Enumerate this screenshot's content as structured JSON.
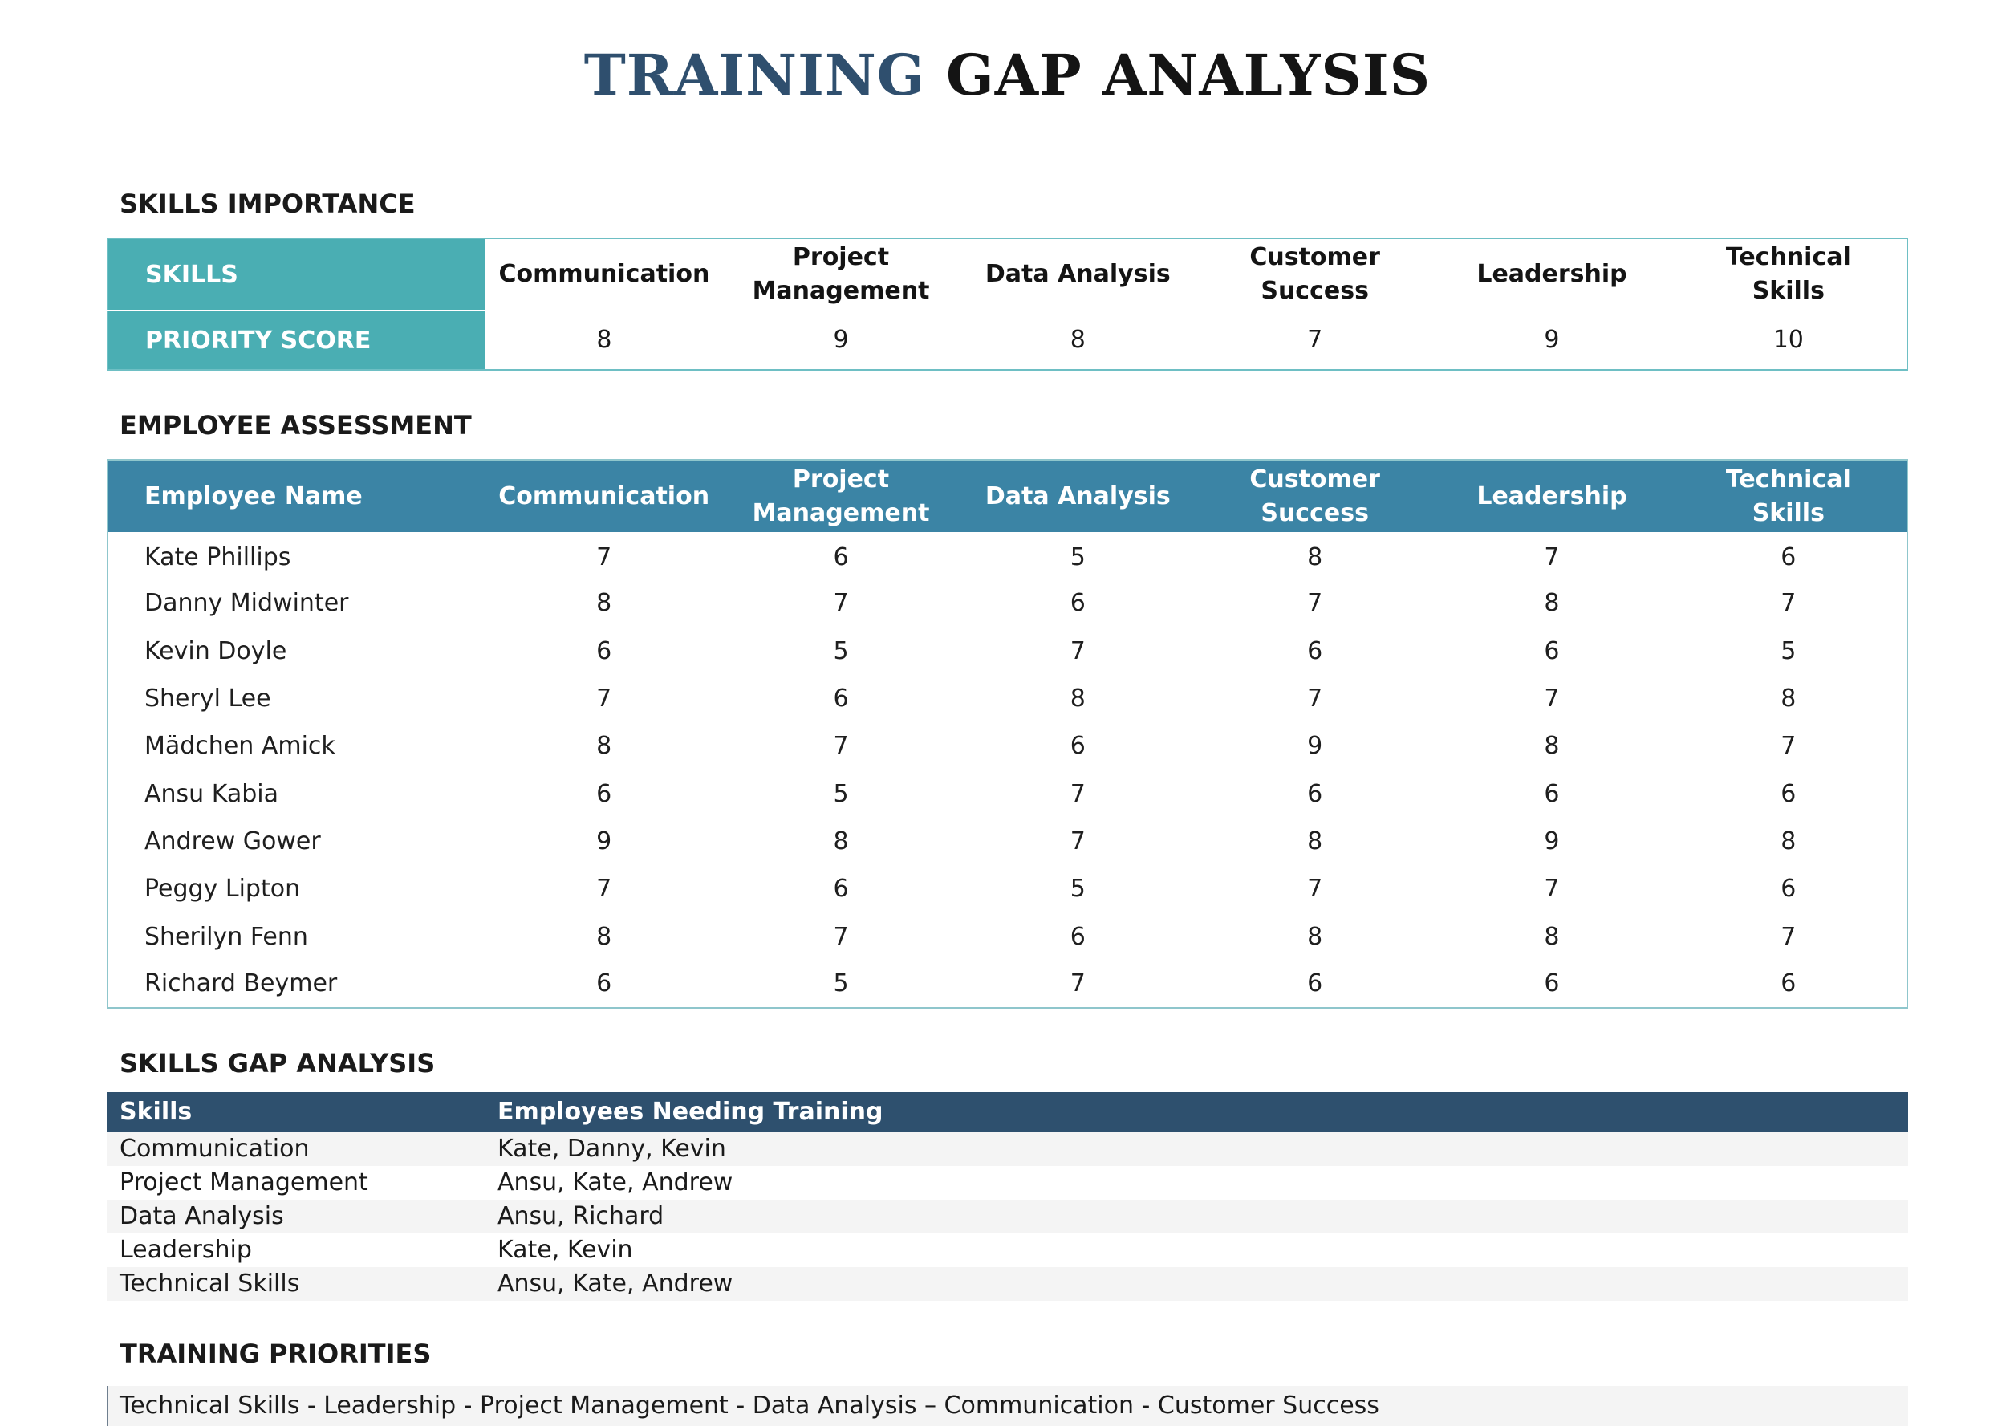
{
  "title": {
    "accent": "TRAINING",
    "rest": "GAP ANALYSIS"
  },
  "importance": {
    "heading": "SKILLS IMPORTANCE",
    "row_label_skills": "SKILLS",
    "row_label_score": "PRIORITY SCORE",
    "skills": [
      {
        "line1": "Communication",
        "line2": ""
      },
      {
        "line1": "Project",
        "line2": "Management"
      },
      {
        "line1": "Data Analysis",
        "line2": ""
      },
      {
        "line1": "Customer",
        "line2": "Success"
      },
      {
        "line1": "Leadership",
        "line2": ""
      },
      {
        "line1": "Technical",
        "line2": "Skills"
      }
    ],
    "scores": [
      "8",
      "9",
      "8",
      "7",
      "9",
      "10"
    ]
  },
  "assessment": {
    "heading": "EMPLOYEE ASSESSMENT",
    "name_header": "Employee Name",
    "columns": [
      {
        "line1": "Communication",
        "line2": ""
      },
      {
        "line1": "Project",
        "line2": "Management"
      },
      {
        "line1": "Data Analysis",
        "line2": ""
      },
      {
        "line1": "Customer",
        "line2": "Success"
      },
      {
        "line1": "Leadership",
        "line2": ""
      },
      {
        "line1": "Technical",
        "line2": "Skills"
      }
    ],
    "rows": [
      {
        "name": "Kate Phillips",
        "scores": [
          "7",
          "6",
          "5",
          "8",
          "7",
          "6"
        ]
      },
      {
        "name": "Danny Midwinter",
        "scores": [
          "8",
          "7",
          "6",
          "7",
          "8",
          "7"
        ]
      },
      {
        "name": "Kevin Doyle",
        "scores": [
          "6",
          "5",
          "7",
          "6",
          "6",
          "5"
        ]
      },
      {
        "name": "Sheryl Lee",
        "scores": [
          "7",
          "6",
          "8",
          "7",
          "7",
          "8"
        ]
      },
      {
        "name": "Mädchen Amick",
        "scores": [
          "8",
          "7",
          "6",
          "9",
          "8",
          "7"
        ]
      },
      {
        "name": "Ansu Kabia",
        "scores": [
          "6",
          "5",
          "7",
          "6",
          "6",
          "6"
        ]
      },
      {
        "name": "Andrew Gower",
        "scores": [
          "9",
          "8",
          "7",
          "8",
          "9",
          "8"
        ]
      },
      {
        "name": "Peggy Lipton",
        "scores": [
          "7",
          "6",
          "5",
          "7",
          "7",
          "6"
        ]
      },
      {
        "name": "Sherilyn Fenn",
        "scores": [
          "8",
          "7",
          "6",
          "8",
          "8",
          "7"
        ]
      },
      {
        "name": "Richard Beymer",
        "scores": [
          "6",
          "5",
          "7",
          "6",
          "6",
          "6"
        ]
      }
    ]
  },
  "gap": {
    "heading": "SKILLS GAP ANALYSIS",
    "col_skills": "Skills",
    "col_employees": "Employees Needing Training",
    "rows": [
      {
        "skill": "Communication",
        "employees": "Kate, Danny, Kevin"
      },
      {
        "skill": "Project Management",
        "employees": "Ansu, Kate, Andrew"
      },
      {
        "skill": "Data Analysis",
        "employees": "Ansu, Richard"
      },
      {
        "skill": "Leadership",
        "employees": "Kate, Kevin"
      },
      {
        "skill": "Technical Skills",
        "employees": "Ansu, Kate, Andrew"
      }
    ]
  },
  "priorities": {
    "heading": "TRAINING PRIORITIES",
    "text": "Technical Skills - Leadership - Project Management - Data Analysis – Communication - Customer Success"
  }
}
